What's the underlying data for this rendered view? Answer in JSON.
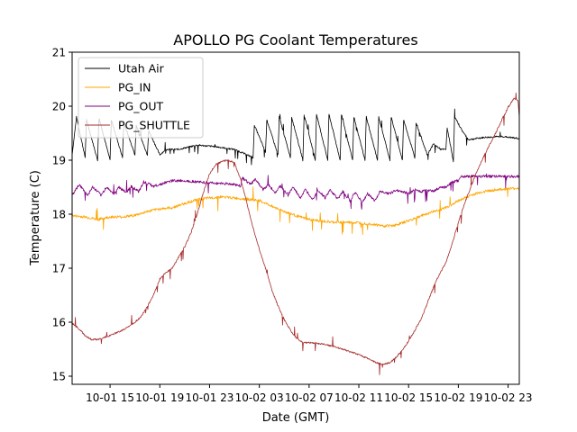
{
  "chart_data": {
    "type": "line",
    "title": "APOLLO PG Coolant Temperatures",
    "xlabel": "Date (GMT)",
    "ylabel": "Temperature (C)",
    "x_unit": "hours since 10-01 00:00 GMT",
    "xlim": [
      11.95,
      47.9
    ],
    "ylim": [
      14.85,
      21
    ],
    "xticks": [
      {
        "value": 15,
        "label": "10-01 15"
      },
      {
        "value": 19,
        "label": "10-01 19"
      },
      {
        "value": 23,
        "label": "10-01 23"
      },
      {
        "value": 27,
        "label": "10-02 03"
      },
      {
        "value": 31,
        "label": "10-02 07"
      },
      {
        "value": 35,
        "label": "10-02 11"
      },
      {
        "value": 39,
        "label": "10-02 15"
      },
      {
        "value": 43,
        "label": "10-02 19"
      },
      {
        "value": 47,
        "label": "10-02 23"
      }
    ],
    "yticks": [
      {
        "value": 15,
        "label": "15"
      },
      {
        "value": 16,
        "label": "16"
      },
      {
        "value": 17,
        "label": "17"
      },
      {
        "value": 18,
        "label": "18"
      },
      {
        "value": 19,
        "label": "19"
      },
      {
        "value": 20,
        "label": "20"
      },
      {
        "value": 21,
        "label": "21"
      }
    ],
    "grid": false,
    "legend_position": "top-left",
    "series": [
      {
        "name": "Utah Air",
        "color": "#000000",
        "sawtooth": {
          "baseline_low": 19.05,
          "peak": 19.75,
          "cycles_start": [
            12.0,
            13.0,
            14.0,
            15.0,
            16.0,
            17.0,
            18.0,
            19.0,
            27.0,
            28.0,
            29.0,
            30.0,
            31.0,
            32.0,
            33.0,
            34.0,
            35.0,
            36.0,
            37.0,
            38.0,
            39.0,
            40.0,
            41.0,
            42.0,
            43.0,
            44.0
          ]
        },
        "points": [
          [
            11.95,
            19.1
          ],
          [
            12.3,
            19.8
          ],
          [
            13.0,
            19.05
          ],
          [
            13.1,
            19.75
          ],
          [
            14.0,
            19.0
          ],
          [
            14.1,
            19.8
          ],
          [
            15.0,
            19.0
          ],
          [
            15.1,
            19.75
          ],
          [
            16.0,
            19.05
          ],
          [
            16.1,
            19.7
          ],
          [
            17.0,
            19.1
          ],
          [
            17.1,
            19.65
          ],
          [
            18.0,
            19.1
          ],
          [
            18.1,
            19.55
          ],
          [
            19.0,
            19.1
          ],
          [
            19.5,
            19.2
          ],
          [
            20.5,
            19.2
          ],
          [
            22.0,
            19.28
          ],
          [
            23.5,
            19.25
          ],
          [
            25.0,
            19.2
          ],
          [
            26.5,
            19.05
          ],
          [
            26.6,
            19.65
          ],
          [
            27.5,
            19.15
          ],
          [
            27.6,
            19.75
          ],
          [
            28.5,
            19.1
          ],
          [
            28.6,
            19.8
          ],
          [
            29.5,
            19.05
          ],
          [
            29.6,
            19.8
          ],
          [
            30.5,
            19.0
          ],
          [
            30.6,
            19.85
          ],
          [
            31.5,
            19.0
          ],
          [
            31.6,
            19.85
          ],
          [
            32.5,
            19.0
          ],
          [
            32.6,
            19.85
          ],
          [
            33.5,
            19.0
          ],
          [
            33.6,
            19.85
          ],
          [
            34.5,
            19.0
          ],
          [
            34.6,
            19.8
          ],
          [
            35.5,
            19.0
          ],
          [
            35.6,
            19.8
          ],
          [
            36.5,
            19.0
          ],
          [
            36.6,
            19.8
          ],
          [
            37.5,
            19.0
          ],
          [
            37.6,
            19.8
          ],
          [
            38.5,
            19.0
          ],
          [
            38.6,
            19.75
          ],
          [
            39.5,
            19.05
          ],
          [
            39.6,
            19.7
          ],
          [
            40.5,
            19.1
          ],
          [
            41.0,
            19.3
          ],
          [
            41.6,
            19.2
          ],
          [
            42.0,
            19.2
          ],
          [
            42.1,
            19.6
          ],
          [
            42.6,
            18.98
          ],
          [
            42.7,
            19.8
          ],
          [
            43.3,
            19.55
          ],
          [
            43.8,
            19.38
          ],
          [
            45.0,
            19.42
          ],
          [
            46.5,
            19.44
          ],
          [
            47.9,
            19.4
          ]
        ]
      },
      {
        "name": "PG_IN",
        "color": "#FFA500",
        "points": [
          [
            11.95,
            17.97
          ],
          [
            13.0,
            17.95
          ],
          [
            14.0,
            17.9
          ],
          [
            15.0,
            17.95
          ],
          [
            16.0,
            17.95
          ],
          [
            17.0,
            17.98
          ],
          [
            18.0,
            18.05
          ],
          [
            19.0,
            18.1
          ],
          [
            20.0,
            18.12
          ],
          [
            21.0,
            18.2
          ],
          [
            22.0,
            18.27
          ],
          [
            23.0,
            18.3
          ],
          [
            24.0,
            18.32
          ],
          [
            25.0,
            18.3
          ],
          [
            26.0,
            18.28
          ],
          [
            27.0,
            18.25
          ],
          [
            28.0,
            18.15
          ],
          [
            29.0,
            18.05
          ],
          [
            30.0,
            17.97
          ],
          [
            31.0,
            17.9
          ],
          [
            32.0,
            17.87
          ],
          [
            33.0,
            17.85
          ],
          [
            34.0,
            17.85
          ],
          [
            35.0,
            17.84
          ],
          [
            36.0,
            17.82
          ],
          [
            37.0,
            17.78
          ],
          [
            38.0,
            17.8
          ],
          [
            39.0,
            17.88
          ],
          [
            40.0,
            17.97
          ],
          [
            41.0,
            18.05
          ],
          [
            42.0,
            18.12
          ],
          [
            43.0,
            18.25
          ],
          [
            44.0,
            18.35
          ],
          [
            45.0,
            18.42
          ],
          [
            46.0,
            18.45
          ],
          [
            47.0,
            18.47
          ],
          [
            47.9,
            18.48
          ]
        ]
      },
      {
        "name": "PG_OUT",
        "color": "#800080",
        "points": [
          [
            11.95,
            18.35
          ],
          [
            12.5,
            18.55
          ],
          [
            13.2,
            18.35
          ],
          [
            13.6,
            18.5
          ],
          [
            14.3,
            18.35
          ],
          [
            14.7,
            18.5
          ],
          [
            15.3,
            18.38
          ],
          [
            15.7,
            18.5
          ],
          [
            16.3,
            18.4
          ],
          [
            16.7,
            18.52
          ],
          [
            17.3,
            18.42
          ],
          [
            17.7,
            18.6
          ],
          [
            18.5,
            18.52
          ],
          [
            19.0,
            18.55
          ],
          [
            20.0,
            18.62
          ],
          [
            21.0,
            18.62
          ],
          [
            22.0,
            18.6
          ],
          [
            23.0,
            18.58
          ],
          [
            24.0,
            18.57
          ],
          [
            25.0,
            18.55
          ],
          [
            25.5,
            18.52
          ],
          [
            25.6,
            18.68
          ],
          [
            26.3,
            18.55
          ],
          [
            26.7,
            18.65
          ],
          [
            27.3,
            18.45
          ],
          [
            27.7,
            18.55
          ],
          [
            28.3,
            18.4
          ],
          [
            28.7,
            18.52
          ],
          [
            29.3,
            18.35
          ],
          [
            29.7,
            18.5
          ],
          [
            30.3,
            18.3
          ],
          [
            30.7,
            18.45
          ],
          [
            31.3,
            18.28
          ],
          [
            31.7,
            18.45
          ],
          [
            32.3,
            18.3
          ],
          [
            32.7,
            18.45
          ],
          [
            33.3,
            18.28
          ],
          [
            33.7,
            18.42
          ],
          [
            34.3,
            18.25
          ],
          [
            34.7,
            18.4
          ],
          [
            35.3,
            18.22
          ],
          [
            35.7,
            18.38
          ],
          [
            36.3,
            18.25
          ],
          [
            36.7,
            18.42
          ],
          [
            37.5,
            18.38
          ],
          [
            38.0,
            18.45
          ],
          [
            38.5,
            18.42
          ],
          [
            39.0,
            18.38
          ],
          [
            39.5,
            18.45
          ],
          [
            40.0,
            18.42
          ],
          [
            40.5,
            18.45
          ],
          [
            41.0,
            18.42
          ],
          [
            41.5,
            18.5
          ],
          [
            42.0,
            18.5
          ],
          [
            42.5,
            18.6
          ],
          [
            43.0,
            18.62
          ],
          [
            43.2,
            18.7
          ],
          [
            44.0,
            18.7
          ],
          [
            45.0,
            18.7
          ],
          [
            46.0,
            18.7
          ],
          [
            47.0,
            18.7
          ],
          [
            47.9,
            18.7
          ]
        ]
      },
      {
        "name": "PG_SHUTTLE",
        "color": "#A52A2A",
        "points": [
          [
            11.95,
            15.98
          ],
          [
            12.5,
            15.88
          ],
          [
            13.0,
            15.75
          ],
          [
            13.5,
            15.68
          ],
          [
            14.0,
            15.68
          ],
          [
            15.0,
            15.75
          ],
          [
            16.0,
            15.85
          ],
          [
            17.0,
            16.0
          ],
          [
            17.5,
            16.1
          ],
          [
            18.0,
            16.3
          ],
          [
            18.5,
            16.5
          ],
          [
            19.0,
            16.8
          ],
          [
            19.5,
            16.92
          ],
          [
            20.0,
            17.0
          ],
          [
            20.5,
            17.2
          ],
          [
            21.0,
            17.4
          ],
          [
            21.5,
            17.65
          ],
          [
            22.0,
            18.0
          ],
          [
            22.5,
            18.4
          ],
          [
            23.0,
            18.75
          ],
          [
            23.5,
            18.92
          ],
          [
            24.0,
            18.98
          ],
          [
            24.5,
            19.0
          ],
          [
            25.0,
            18.95
          ],
          [
            25.5,
            18.65
          ],
          [
            26.0,
            18.2
          ],
          [
            26.5,
            17.75
          ],
          [
            27.0,
            17.35
          ],
          [
            27.5,
            17.0
          ],
          [
            28.0,
            16.6
          ],
          [
            28.5,
            16.3
          ],
          [
            29.0,
            16.05
          ],
          [
            29.5,
            15.85
          ],
          [
            30.0,
            15.7
          ],
          [
            30.5,
            15.62
          ],
          [
            31.0,
            15.62
          ],
          [
            32.0,
            15.6
          ],
          [
            33.0,
            15.55
          ],
          [
            34.0,
            15.48
          ],
          [
            35.0,
            15.4
          ],
          [
            35.5,
            15.35
          ],
          [
            36.0,
            15.3
          ],
          [
            36.5,
            15.24
          ],
          [
            37.0,
            15.22
          ],
          [
            37.5,
            15.25
          ],
          [
            38.0,
            15.35
          ],
          [
            38.5,
            15.48
          ],
          [
            39.0,
            15.65
          ],
          [
            39.5,
            15.85
          ],
          [
            40.0,
            16.05
          ],
          [
            40.5,
            16.35
          ],
          [
            41.0,
            16.65
          ],
          [
            41.5,
            16.9
          ],
          [
            42.0,
            17.1
          ],
          [
            42.5,
            17.45
          ],
          [
            43.0,
            17.85
          ],
          [
            43.5,
            18.2
          ],
          [
            44.0,
            18.5
          ],
          [
            44.5,
            18.8
          ],
          [
            45.0,
            19.05
          ],
          [
            45.5,
            19.28
          ],
          [
            46.0,
            19.5
          ],
          [
            46.5,
            19.75
          ],
          [
            47.0,
            19.98
          ],
          [
            47.5,
            20.15
          ],
          [
            47.8,
            20.1
          ],
          [
            47.9,
            19.8
          ]
        ]
      }
    ]
  }
}
